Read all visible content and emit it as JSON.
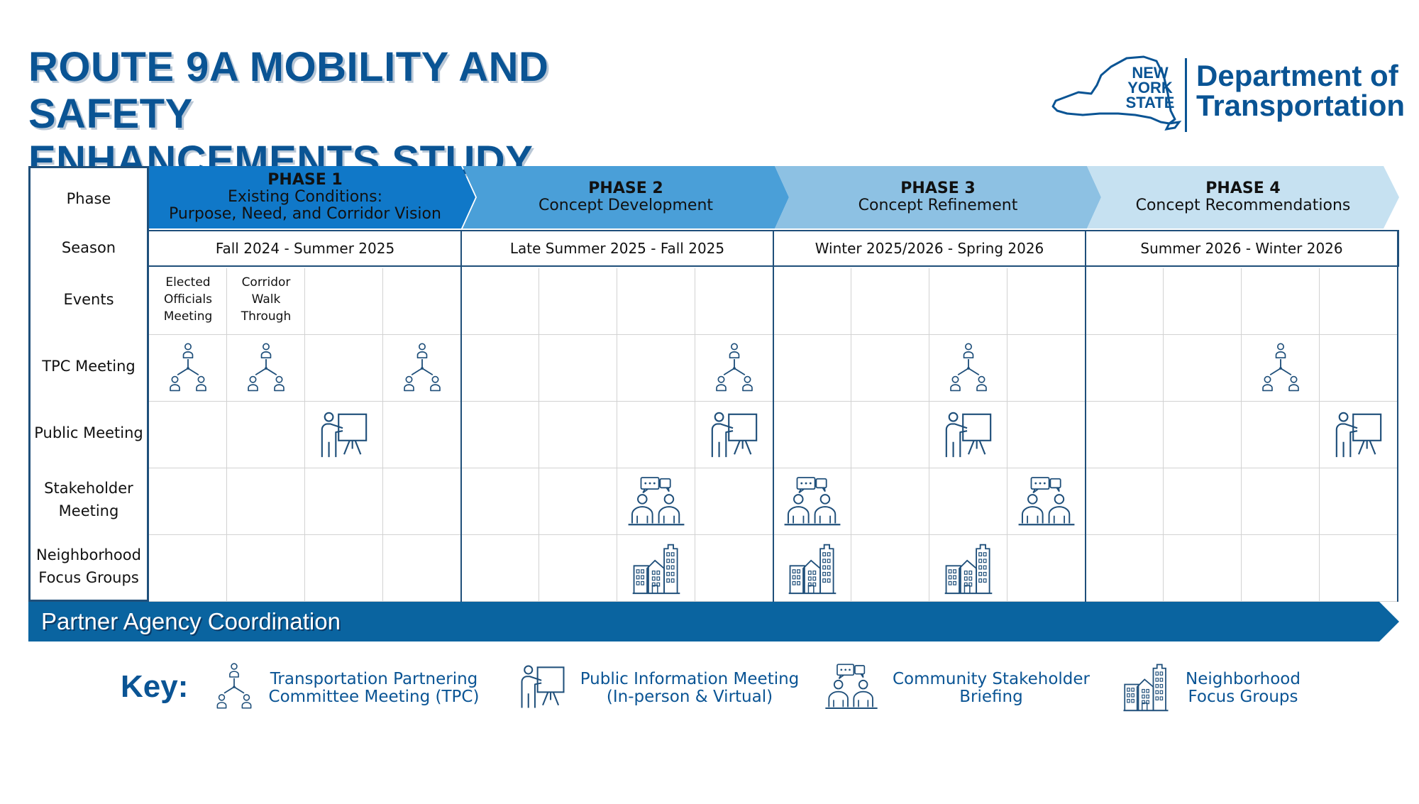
{
  "title": {
    "line1": "ROUTE 9A MOBILITY AND SAFETY",
    "line2": "ENHANCEMENTS STUDY"
  },
  "logo": {
    "state_line1": "NEW",
    "state_line2": "YORK",
    "state_line3": "STATE",
    "dept_line1": "Department of",
    "dept_line2": "Transportation"
  },
  "row_headers": {
    "phase": "Phase",
    "season": "Season",
    "events": "Events",
    "tpc": "TPC Meeting",
    "public": "Public Meeting",
    "stakeholder": "Stakeholder Meeting",
    "focus": "Neighborhood Focus Groups"
  },
  "phases": [
    {
      "title": "PHASE 1",
      "subtitle": "Existing Conditions:",
      "subtitle2": "Purpose, Need, and Corridor Vision",
      "season": "Fall 2024 - Summer 2025",
      "color": "#1078c8"
    },
    {
      "title": "PHASE 2",
      "subtitle": "Concept Development",
      "season": "Late Summer 2025 - Fall 2025",
      "color": "#4a9fd8"
    },
    {
      "title": "PHASE 3",
      "subtitle": "Concept Refinement",
      "season": "Winter 2025/2026 - Spring 2026",
      "color": "#8dc1e3"
    },
    {
      "title": "PHASE 4",
      "subtitle": "Concept Recommendations",
      "season": "Summer 2026 - Winter 2026",
      "color": "#c6e1f1"
    }
  ],
  "events": {
    "elected_officials": "Elected Officials Meeting",
    "corridor_walk": "Corridor Walk Through"
  },
  "partner_bar": {
    "label": "Partner Agency Coordination",
    "color": "#0a64a0"
  },
  "key": {
    "title": "Key:",
    "tpc": "Transportation Partnering Committee Meeting (TPC)",
    "public": "Public Information Meeting (In-person & Virtual)",
    "stakeholder": "Community Stakeholder Briefing",
    "focus": "Neighborhood Focus Groups"
  },
  "colors": {
    "brand": "#0a5494",
    "icon": "#1f4f7a",
    "grid": "#d2d2d2"
  }
}
